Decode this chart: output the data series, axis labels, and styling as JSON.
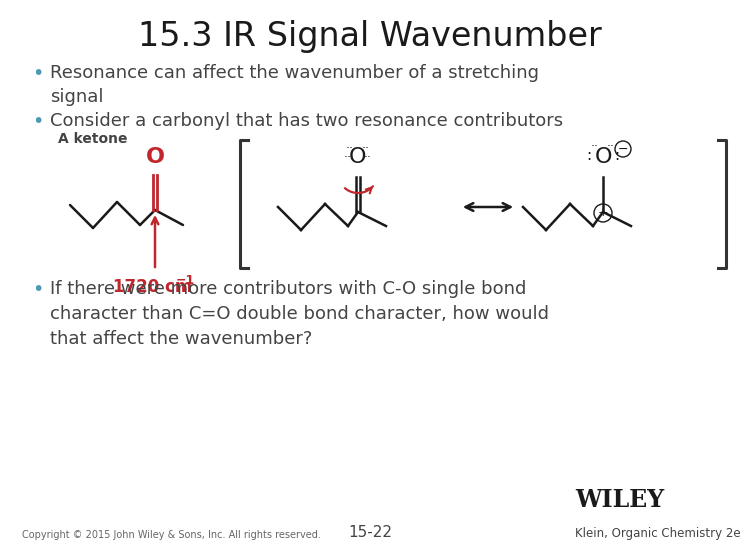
{
  "title": "15.3 IR Signal Wavenumber",
  "bg_color": "#ffffff",
  "red_color": "#c0272d",
  "bond_color": "#1a1a1a",
  "bullet_color": "#4a9ab5",
  "text_color": "#444444",
  "bracket_color": "#333333",
  "footer_left": "Copyright © 2015 John Wiley & Sons, Inc. All rights reserved.",
  "footer_center": "15-22",
  "footer_right": "Klein, Organic Chemistry 2e",
  "wiley_text": "WILEY"
}
